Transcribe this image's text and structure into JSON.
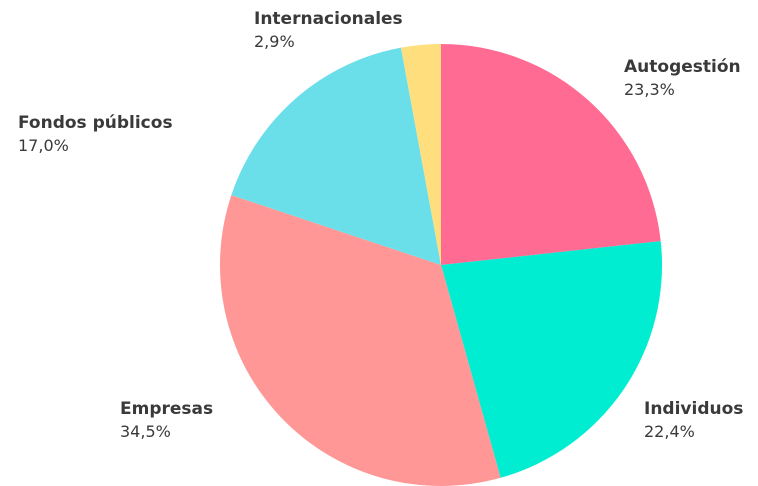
{
  "chart_data": {
    "type": "pie",
    "title": "",
    "start_angle_deg": 0,
    "direction": "clockwise",
    "slices": [
      {
        "label": "Autogestión",
        "value": 23.3,
        "value_label": "23,3%",
        "color": "#ff6b93"
      },
      {
        "label": "Individuos",
        "value": 22.4,
        "value_label": "22,4%",
        "color": "#00edd2"
      },
      {
        "label": "Empresas",
        "value": 34.5,
        "value_label": "34,5%",
        "color": "#ff9797"
      },
      {
        "label": "Fondos públicos",
        "value": 17.0,
        "value_label": "17,0%",
        "color": "#6bdfe9"
      },
      {
        "label": "Internacionales",
        "value": 2.9,
        "value_label": "2,9%",
        "color": "#ffdf7d"
      }
    ],
    "legend": "none"
  }
}
